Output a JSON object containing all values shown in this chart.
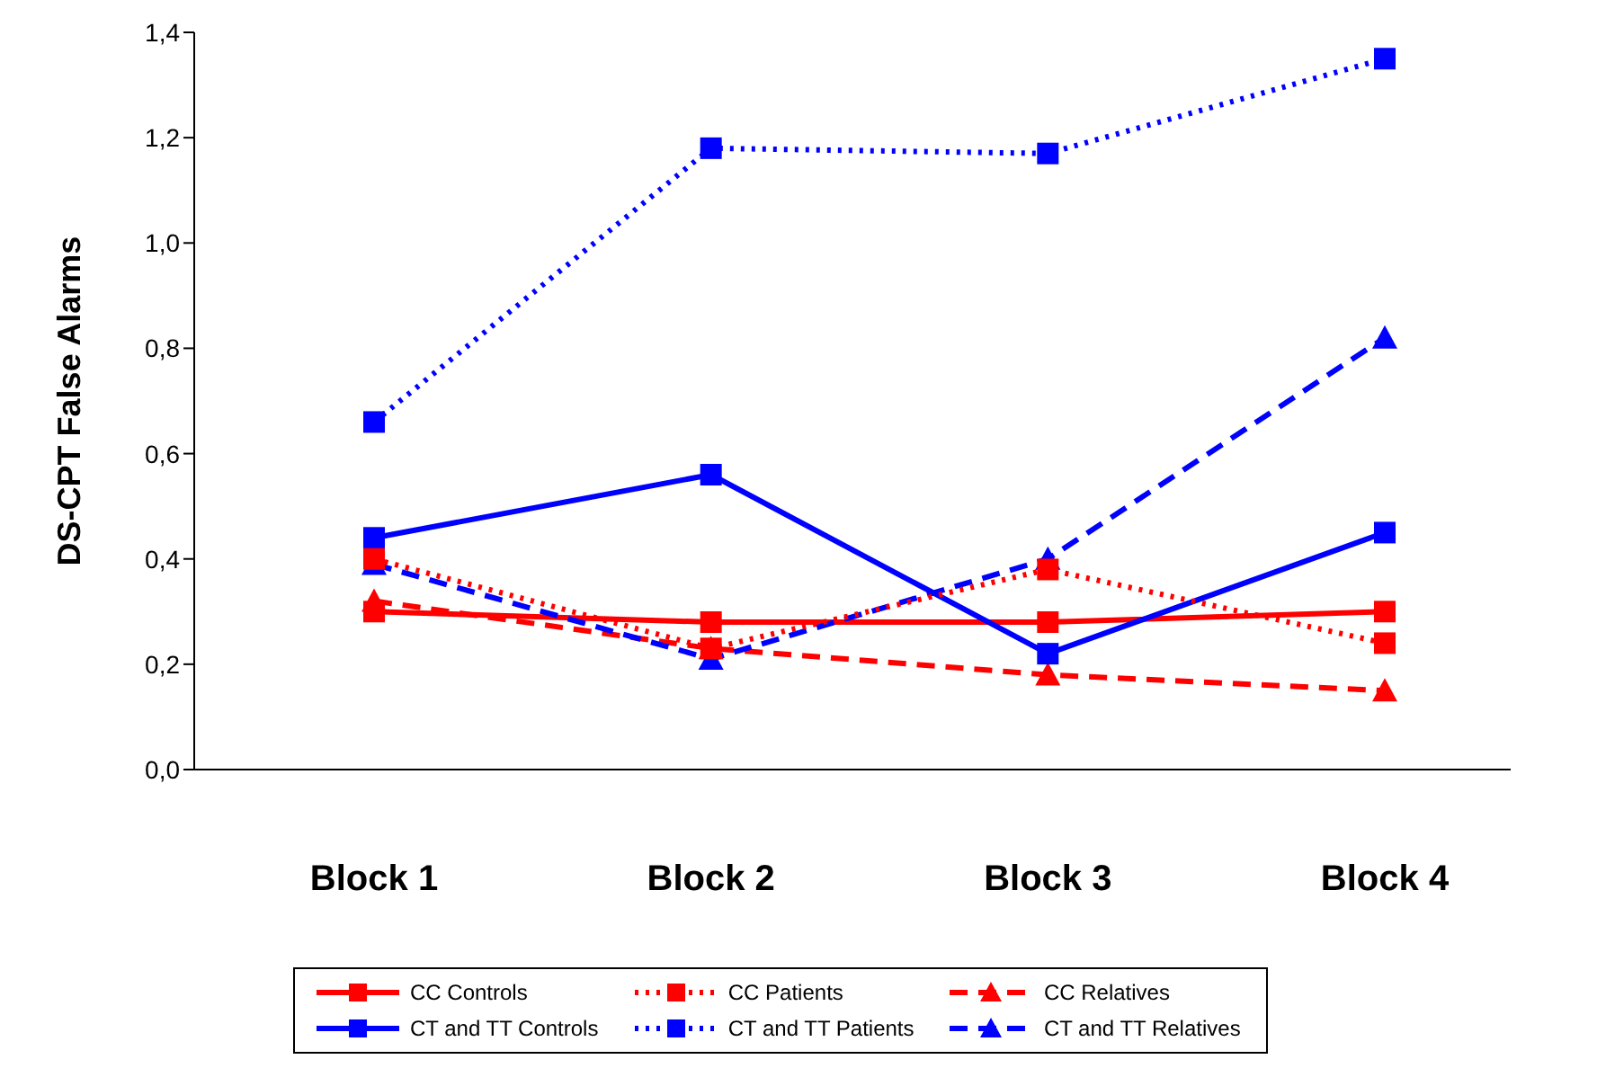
{
  "chart_data": {
    "type": "line",
    "ylabel": "DS-CPT False Alarms",
    "categories": [
      "Block 1",
      "Block 2",
      "Block 3",
      "Block 4"
    ],
    "ylim": [
      0,
      1.4
    ],
    "yticks": [
      {
        "value": 0,
        "label": "0,0"
      },
      {
        "value": 0.2,
        "label": "0,2"
      },
      {
        "value": 0.4,
        "label": "0,4"
      },
      {
        "value": 0.6,
        "label": "0,6"
      },
      {
        "value": 0.8,
        "label": "0,8"
      },
      {
        "value": 1.0,
        "label": "1,0"
      },
      {
        "value": 1.2,
        "label": "1,2"
      },
      {
        "value": 1.4,
        "label": "1,4"
      }
    ],
    "grid": false,
    "legend": "bottom",
    "series": [
      {
        "name": "CC Controls",
        "color": "#ff0000",
        "values": [
          0.3,
          0.28,
          0.28,
          0.3
        ],
        "marker": "square",
        "line_style": "solid"
      },
      {
        "name": "CC Patients",
        "color": "#ff0000",
        "values": [
          0.4,
          0.23,
          0.38,
          0.24
        ],
        "marker": "square",
        "line_style": "dotted"
      },
      {
        "name": "CC Relatives",
        "color": "#ff0000",
        "values": [
          0.32,
          0.23,
          0.18,
          0.15
        ],
        "marker": "triangle",
        "line_style": "dashed"
      },
      {
        "name": "CT and TT Controls",
        "color": "#0000ff",
        "values": [
          0.44,
          0.56,
          0.22,
          0.45
        ],
        "marker": "square",
        "line_style": "solid"
      },
      {
        "name": "CT and TT Patients",
        "color": "#0000ff",
        "values": [
          0.66,
          1.18,
          1.17,
          1.35
        ],
        "marker": "square",
        "line_style": "dotted"
      },
      {
        "name": "CT and TT Relatives",
        "color": "#0000ff",
        "values": [
          0.39,
          0.21,
          0.4,
          0.82
        ],
        "marker": "triangle",
        "line_style": "dashed"
      }
    ]
  }
}
